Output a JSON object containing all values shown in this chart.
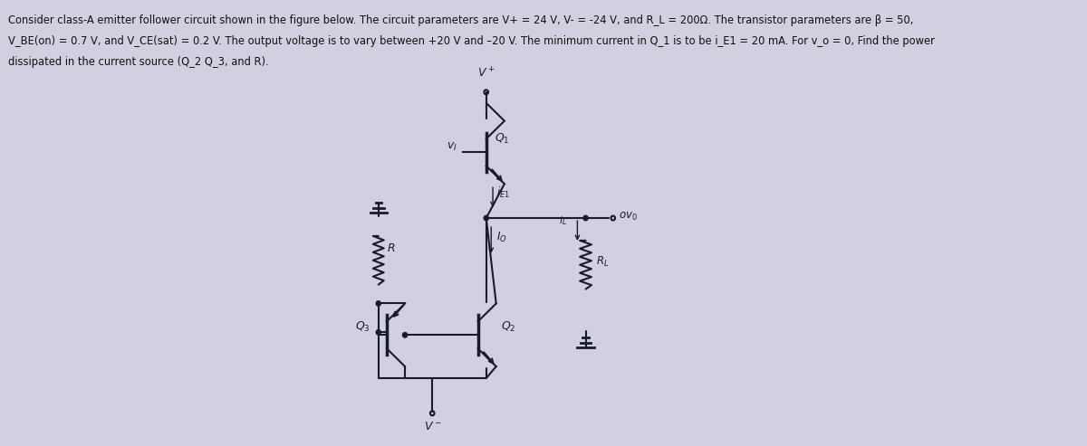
{
  "bg_color": "#d0d0e0",
  "fig_width": 12.0,
  "fig_height": 4.93,
  "dpi": 100,
  "lc": "#1a1a2e",
  "text_color": "#111111",
  "text_lines": [
    "Consider class-A emitter follower circuit shown in the figure below. The circuit parameters are V+ = 24 V, V- = -24 V, and R_L = 200Ω. The transistor parameters are β = 50,",
    "V_BE(on) = 0.7 V, and V_CE(sat) = 0.2 V. The output voltage is to vary between +20 V and –20 V. The minimum current in Q_1 is to be i_E1 = 20 mA. For v_o = 0, Find the power",
    "dissipated in the current source (Q_2 Q_3, and R)."
  ]
}
